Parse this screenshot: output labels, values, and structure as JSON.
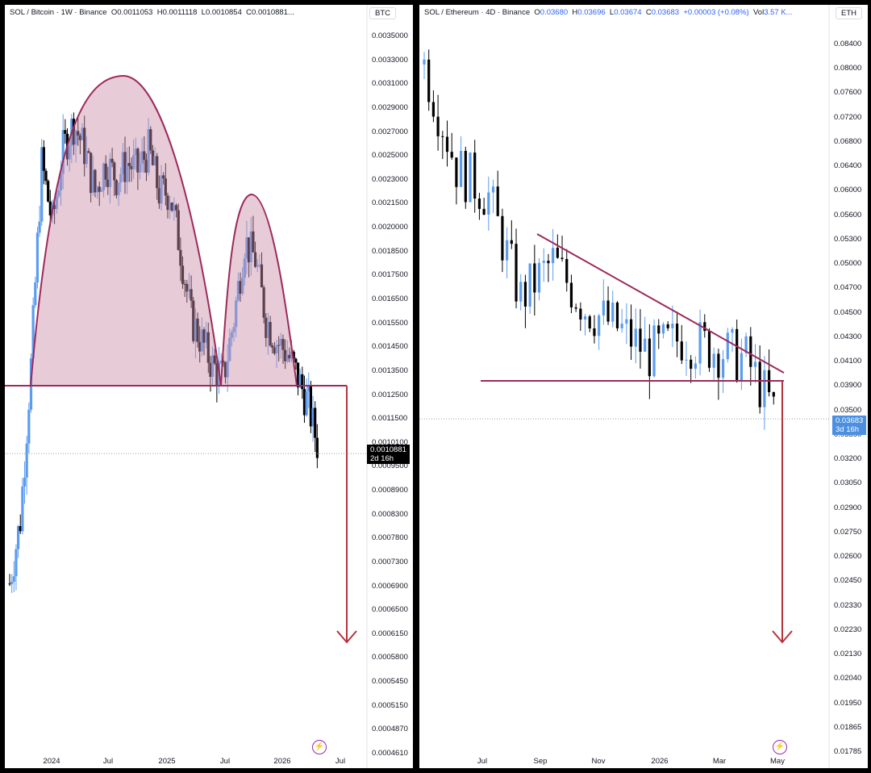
{
  "left": {
    "header": {
      "symbol": "SOL / Bitcoin · 1W · Binance",
      "o_label": "O",
      "o": "0.0011053",
      "h_label": "H",
      "h": "0.0011118",
      "l_label": "L",
      "l": "0.0010854",
      "c_label": "C",
      "c": "0.0010881..."
    },
    "unit": "BTC",
    "y_ticks": [
      "0.0035000",
      "0.0033000",
      "0.0031000",
      "0.0029000",
      "0.0027000",
      "0.0025000",
      "0.0023000",
      "0.0021500",
      "0.0020000",
      "0.0018500",
      "0.0017500",
      "0.0016500",
      "0.0015500",
      "0.0014500",
      "0.0013500",
      "0.0012500",
      "0.0011500",
      "0.0010100",
      "0.0009500",
      "0.0008900",
      "0.0008300",
      "0.0007800",
      "0.0007300",
      "0.0006900",
      "0.0006500",
      "0.0006150",
      "0.0005800",
      "0.0005450",
      "0.0005150",
      "0.0004870",
      "0.0004610"
    ],
    "last_price": "0.0010881",
    "countdown": "2d 16h",
    "x_ticks": [
      "2024",
      "Jul",
      "2025",
      "Jul",
      "2026",
      "Jul"
    ]
  },
  "right": {
    "header": {
      "symbol": "SOL / Ethereum · 4D · Binance",
      "o_label": "O",
      "o": "0.03680",
      "h_label": "H",
      "h": "0.03696",
      "l_label": "L",
      "l": "0.03674",
      "c_label": "C",
      "c": "0.03683",
      "change": "+0.00003 (+0.08%)",
      "vol_label": "Vol",
      "vol": "3.57 K..."
    },
    "unit": "ETH",
    "y_ticks": [
      "0.08400",
      "0.08000",
      "0.07600",
      "0.07200",
      "0.06800",
      "0.06400",
      "0.06000",
      "0.05600",
      "0.05300",
      "0.05000",
      "0.04700",
      "0.04500",
      "0.04300",
      "0.04100",
      "0.03900",
      "0.03500",
      "0.03350",
      "0.03200",
      "0.03050",
      "0.02900",
      "0.02750",
      "0.02600",
      "0.02450",
      "0.02330",
      "0.02230",
      "0.02130",
      "0.02040",
      "0.01950",
      "0.01865",
      "0.01785"
    ],
    "last_price": "0.03683",
    "countdown": "3d 16h",
    "x_ticks": [
      "Jul",
      "Sep",
      "Nov",
      "2026",
      "Mar",
      "May"
    ]
  },
  "colors": {
    "bull": "#5b9cf0",
    "bear": "#000000",
    "pattern_stroke": "#9c2a5a",
    "pattern_fill": "#c98ba6",
    "arrow": "#b5343c"
  },
  "chart_data": [
    {
      "type": "line",
      "title": "SOL / Bitcoin · 1W · Binance",
      "y_unit": "BTC",
      "y_scale": "log",
      "ylim": [
        0.000461,
        0.0036
      ],
      "x": [
        "2023-10",
        "2023-11",
        "2023-12",
        "2024-01",
        "2024-02",
        "2024-03",
        "2024-04",
        "2024-05",
        "2024-06",
        "2024-07",
        "2024-08",
        "2024-09",
        "2024-10",
        "2024-11",
        "2024-12",
        "2025-01",
        "2025-02",
        "2025-03",
        "2025-04",
        "2025-05",
        "2025-06",
        "2025-07",
        "2025-08",
        "2025-09",
        "2025-10",
        "2025-11",
        "2025-12",
        "2026-01",
        "2026-02",
        "2026-03"
      ],
      "series": [
        {
          "values": [
            0.00075,
            0.0009,
            0.0014,
            0.0025,
            0.0021,
            0.0026,
            0.0028,
            0.0026,
            0.0023,
            0.0025,
            0.0024,
            0.0025,
            0.00245,
            0.0026,
            0.0023,
            0.0023,
            0.00195,
            0.0016,
            0.0015,
            0.0014,
            0.00135,
            0.0016,
            0.002,
            0.0019,
            0.0016,
            0.0015,
            0.00145,
            0.00135,
            0.00125,
            0.0010881
          ]
        }
      ]
    },
    {
      "type": "line",
      "title": "SOL / Ethereum · 4D · Binance",
      "y_unit": "ETH",
      "y_scale": "log",
      "ylim": [
        0.0177,
        0.088
      ],
      "x": [
        "2025-05",
        "2025-06",
        "2025-07",
        "2025-08",
        "2025-09",
        "2025-10",
        "2025-11",
        "2025-12",
        "2026-01",
        "2026-02",
        "2026-03",
        "2026-04"
      ],
      "series": [
        {
          "values": [
            0.08,
            0.064,
            0.06,
            0.048,
            0.052,
            0.047,
            0.045,
            0.0425,
            0.044,
            0.043,
            0.042,
            0.03683
          ]
        }
      ]
    }
  ]
}
